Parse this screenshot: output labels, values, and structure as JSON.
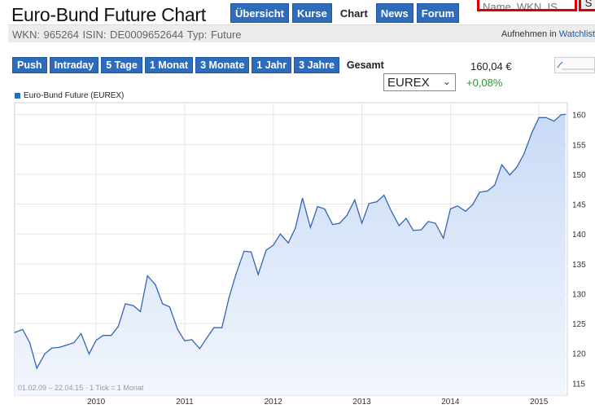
{
  "header": {
    "title": "Euro-Bund Future Chart",
    "tabs": [
      {
        "label": "Übersicht",
        "active": false
      },
      {
        "label": "Kurse",
        "active": false
      },
      {
        "label": "Chart",
        "active": true
      },
      {
        "label": "News",
        "active": false
      },
      {
        "label": "Forum",
        "active": false
      }
    ],
    "search_placeholder": "Name, WKN, IS",
    "search_button": "S"
  },
  "infobar": {
    "text": "WKN: 965264   ISIN: DE0009652644   Typ: Future",
    "watch_prefix": "Aufnehmen in ",
    "watch_link": "Watchlist"
  },
  "periods": [
    {
      "label": "Push",
      "active": false
    },
    {
      "label": "Intraday",
      "active": false
    },
    {
      "label": "5 Tage",
      "active": false
    },
    {
      "label": "1 Monat",
      "active": false
    },
    {
      "label": "3 Monate",
      "active": false
    },
    {
      "label": "1 Jahr",
      "active": false
    },
    {
      "label": "3 Jahre",
      "active": false
    },
    {
      "label": "Gesamt",
      "active": true
    }
  ],
  "quote": {
    "price": "160,04 €",
    "change": "+0,08%",
    "exchange": "EUREX"
  },
  "colors": {
    "accent": "#2e6bb8",
    "line": "#3566b4",
    "positive": "#2a9a2a",
    "alert": "#d80000"
  },
  "chart_data": {
    "type": "area",
    "legend": [
      "Euro-Bund Future (EUREX)"
    ],
    "series": [
      {
        "name": "Euro-Bund Future (EUREX)",
        "x": [
          2009.08,
          2009.17,
          2009.25,
          2009.33,
          2009.42,
          2009.5,
          2009.58,
          2009.67,
          2009.75,
          2009.83,
          2009.92,
          2010.0,
          2010.08,
          2010.17,
          2010.25,
          2010.33,
          2010.42,
          2010.5,
          2010.58,
          2010.67,
          2010.75,
          2010.83,
          2010.92,
          2011.0,
          2011.08,
          2011.17,
          2011.25,
          2011.33,
          2011.42,
          2011.5,
          2011.58,
          2011.67,
          2011.75,
          2011.83,
          2011.92,
          2012.0,
          2012.08,
          2012.17,
          2012.25,
          2012.33,
          2012.42,
          2012.5,
          2012.58,
          2012.67,
          2012.75,
          2012.83,
          2012.92,
          2013.0,
          2013.08,
          2013.17,
          2013.25,
          2013.33,
          2013.42,
          2013.5,
          2013.58,
          2013.67,
          2013.75,
          2013.83,
          2013.92,
          2014.0,
          2014.08,
          2014.17,
          2014.25,
          2014.33,
          2014.42,
          2014.5,
          2014.58,
          2014.67,
          2014.75,
          2014.83,
          2014.92,
          2015.0,
          2015.08,
          2015.17,
          2015.25,
          2015.3
        ],
        "values": [
          123.5,
          124.0,
          121.8,
          117.5,
          119.9,
          120.9,
          121.0,
          121.4,
          121.8,
          123.3,
          119.9,
          122.2,
          123.0,
          123.0,
          124.5,
          128.3,
          128.0,
          127.0,
          133.0,
          131.5,
          128.3,
          127.8,
          124.0,
          122.1,
          122.3,
          120.8,
          122.6,
          124.3,
          124.3,
          129.3,
          133.3,
          137.1,
          137.0,
          133.2,
          137.3,
          138.1,
          140.0,
          138.5,
          141.0,
          146.0,
          141.1,
          144.6,
          144.2,
          141.6,
          141.8,
          143.1,
          145.7,
          141.8,
          145.1,
          145.4,
          146.5,
          143.9,
          141.4,
          142.6,
          140.6,
          140.7,
          142.1,
          141.8,
          139.3,
          144.2,
          144.7,
          143.8,
          144.9,
          147.0,
          147.2,
          148.2,
          151.6,
          149.9,
          151.2,
          153.4,
          157.0,
          159.5,
          159.5,
          158.9,
          160.0,
          160.04
        ]
      }
    ],
    "ylim": [
      113,
      162
    ],
    "yticks": [
      115,
      120,
      125,
      130,
      135,
      140,
      145,
      150,
      155,
      160
    ],
    "xlim": [
      2009.08,
      2015.32
    ],
    "xticks": [
      2010,
      2011,
      2012,
      2013,
      2014,
      2015
    ],
    "grid": true,
    "legend_position": "top-left",
    "footnote": "01.02.09 – 22.04.15 · 1 Tick = 1 Monat"
  }
}
